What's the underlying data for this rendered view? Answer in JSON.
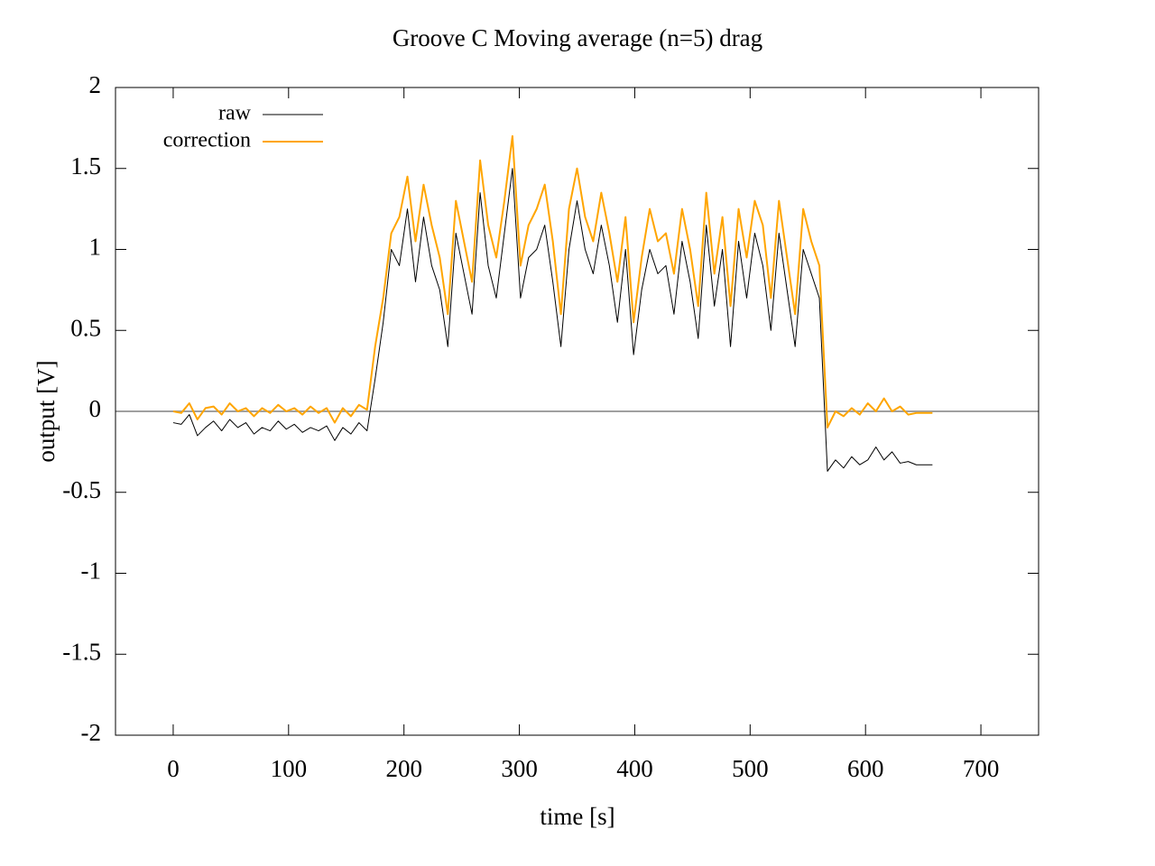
{
  "chart_data": {
    "type": "line",
    "title": "Groove C  Moving average (n=5) drag",
    "xlabel": "time [s]",
    "ylabel": "output [V]",
    "xlim": [
      -50,
      750
    ],
    "xticks": [
      0,
      100,
      200,
      300,
      400,
      500,
      600,
      700
    ],
    "ylim": [
      -2,
      2
    ],
    "yticks": [
      -2,
      -1.5,
      -1,
      -0.5,
      0,
      0.5,
      1,
      1.5,
      2
    ],
    "zeroaxis": true,
    "legend": "top-left",
    "x": [
      0,
      7,
      14,
      21,
      28,
      35,
      42,
      49,
      56,
      63,
      70,
      77,
      84,
      91,
      98,
      105,
      112,
      119,
      126,
      133,
      140,
      147,
      154,
      161,
      168,
      175,
      182,
      189,
      196,
      203,
      210,
      217,
      224,
      231,
      238,
      245,
      252,
      259,
      266,
      273,
      280,
      287,
      294,
      301,
      308,
      315,
      322,
      329,
      336,
      343,
      350,
      357,
      364,
      371,
      378,
      385,
      392,
      399,
      406,
      413,
      420,
      427,
      434,
      441,
      448,
      455,
      462,
      469,
      476,
      483,
      490,
      497,
      504,
      511,
      518,
      525,
      532,
      539,
      546,
      553,
      560,
      567,
      574,
      581,
      588,
      595,
      602,
      609,
      616,
      623,
      630,
      637,
      644,
      651,
      658
    ],
    "series": [
      {
        "name": "raw",
        "color": "#000000",
        "width": 1,
        "values": [
          -0.07,
          -0.08,
          -0.02,
          -0.15,
          -0.1,
          -0.06,
          -0.12,
          -0.05,
          -0.1,
          -0.07,
          -0.14,
          -0.1,
          -0.12,
          -0.06,
          -0.11,
          -0.08,
          -0.13,
          -0.1,
          -0.12,
          -0.09,
          -0.18,
          -0.1,
          -0.14,
          -0.07,
          -0.12,
          0.2,
          0.55,
          1.0,
          0.9,
          1.25,
          0.8,
          1.2,
          0.9,
          0.75,
          0.4,
          1.1,
          0.85,
          0.6,
          1.35,
          0.9,
          0.7,
          1.1,
          1.5,
          0.7,
          0.95,
          1.0,
          1.15,
          0.8,
          0.4,
          1.0,
          1.3,
          1.0,
          0.85,
          1.15,
          0.9,
          0.55,
          1.0,
          0.35,
          0.75,
          1.0,
          0.85,
          0.9,
          0.6,
          1.05,
          0.8,
          0.45,
          1.15,
          0.65,
          1.0,
          0.4,
          1.05,
          0.7,
          1.1,
          0.9,
          0.5,
          1.1,
          0.75,
          0.4,
          1.0,
          0.85,
          0.7,
          -0.37,
          -0.3,
          -0.35,
          -0.28,
          -0.33,
          -0.3,
          -0.22,
          -0.3,
          -0.25,
          -0.32,
          -0.31,
          -0.33,
          -0.33,
          -0.33
        ]
      },
      {
        "name": "correction",
        "color": "#ffa500",
        "width": 2,
        "values": [
          0,
          -0.01,
          0.05,
          -0.05,
          0.02,
          0.03,
          -0.02,
          0.05,
          0,
          0.02,
          -0.03,
          0.02,
          -0.01,
          0.04,
          0,
          0.02,
          -0.02,
          0.03,
          -0.01,
          0.02,
          -0.07,
          0.02,
          -0.03,
          0.04,
          0.01,
          0.4,
          0.7,
          1.1,
          1.2,
          1.45,
          1.05,
          1.4,
          1.15,
          0.95,
          0.6,
          1.3,
          1.05,
          0.8,
          1.55,
          1.15,
          0.95,
          1.3,
          1.7,
          0.9,
          1.15,
          1.25,
          1.4,
          1.05,
          0.6,
          1.25,
          1.5,
          1.2,
          1.05,
          1.35,
          1.1,
          0.8,
          1.2,
          0.55,
          0.95,
          1.25,
          1.05,
          1.1,
          0.85,
          1.25,
          1.0,
          0.65,
          1.35,
          0.85,
          1.2,
          0.65,
          1.25,
          0.95,
          1.3,
          1.15,
          0.7,
          1.3,
          0.95,
          0.6,
          1.25,
          1.05,
          0.9,
          -0.1,
          0.0,
          -0.03,
          0.02,
          -0.02,
          0.05,
          0.0,
          0.08,
          0.0,
          0.03,
          -0.02,
          -0.01,
          -0.01,
          -0.01
        ]
      }
    ]
  }
}
